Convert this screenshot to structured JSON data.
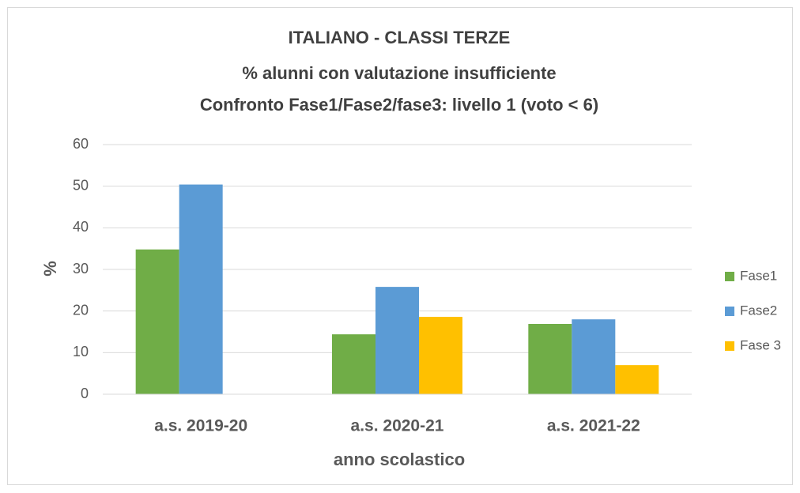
{
  "chart_data": {
    "type": "bar",
    "title": [
      "ITALIANO - CLASSI TERZE",
      "% alunni con valutazione insufficiente",
      "Confronto Fase1/Fase2/fase3: livello 1 (voto < 6)"
    ],
    "y_label": "%",
    "x_label": "anno scolastico",
    "categories": [
      "a.s. 2019-20",
      "a.s. 2020-21",
      "a.s. 2021-22"
    ],
    "series": [
      {
        "name": "Fase1",
        "color": "#70ad47",
        "values": [
          34.8,
          14.4,
          16.9
        ]
      },
      {
        "name": "Fase2",
        "color": "#5b9bd5",
        "values": [
          50.4,
          25.8,
          18.0
        ]
      },
      {
        "name": "Fase 3",
        "color": "#ffc000",
        "values": [
          null,
          18.6,
          7.0
        ]
      }
    ],
    "ylim": [
      0,
      60
    ],
    "yticks": [
      0,
      10,
      20,
      30,
      40,
      50,
      60
    ],
    "grid": true,
    "legend": "right"
  }
}
